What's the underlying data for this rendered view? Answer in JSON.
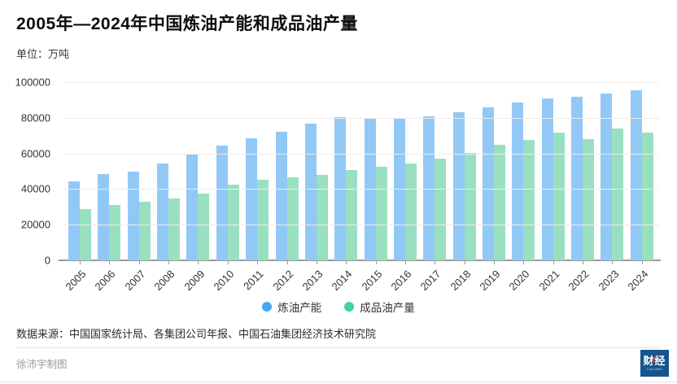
{
  "title": "2005年—2024年中国炼油产能和成品油产量",
  "unit_label": "单位：万吨",
  "source": "数据来源：中国国家统计局、各集团公司年报、中国石油集团经济技术研究院",
  "credit": "徐沛宇制图",
  "logo": {
    "cn": "财经",
    "slash": "/",
    "sub": "CAIJING"
  },
  "colors": {
    "bar_capacity": "#92c8f6",
    "bar_production": "#99e0c0",
    "legend_capacity": "#4aa6ee",
    "legend_production": "#3fd59e",
    "gridline": "#ececec",
    "axis": "#9a9a9a",
    "logo_bg": "#14568e",
    "logo_slash": "#e8392e"
  },
  "chart_data": {
    "type": "bar",
    "title": "2005年—2024年中国炼油产能和成品油产量",
    "unit": "万吨",
    "categories": [
      "2005",
      "2006",
      "2007",
      "2008",
      "2009",
      "2010",
      "2011",
      "2012",
      "2013",
      "2014",
      "2015",
      "2016",
      "2017",
      "2018",
      "2019",
      "2020",
      "2021",
      "2022",
      "2023",
      "2024"
    ],
    "series": [
      {
        "name": "炼油产能",
        "color": "#92c8f6",
        "legend_color": "#4aa6ee",
        "values": [
          44500,
          48500,
          50000,
          54500,
          59500,
          64500,
          68500,
          72000,
          76500,
          80500,
          79500,
          79500,
          81000,
          83000,
          86000,
          88500,
          91000,
          92000,
          93500,
          95500
        ]
      },
      {
        "name": "成品油产量",
        "color": "#99e0c0",
        "legend_color": "#3fd59e",
        "values": [
          29000,
          31000,
          33000,
          34500,
          37500,
          42500,
          45000,
          46500,
          48000,
          50500,
          52500,
          54500,
          57000,
          60500,
          65000,
          67500,
          71500,
          68000,
          74000,
          71500
        ]
      }
    ],
    "xlabel": "",
    "ylabel": "万吨",
    "ylim": [
      0,
      100000
    ],
    "yticks": [
      0,
      20000,
      40000,
      60000,
      80000,
      100000
    ],
    "grid": true,
    "legend_position": "bottom",
    "xtick_rotation": -45
  }
}
